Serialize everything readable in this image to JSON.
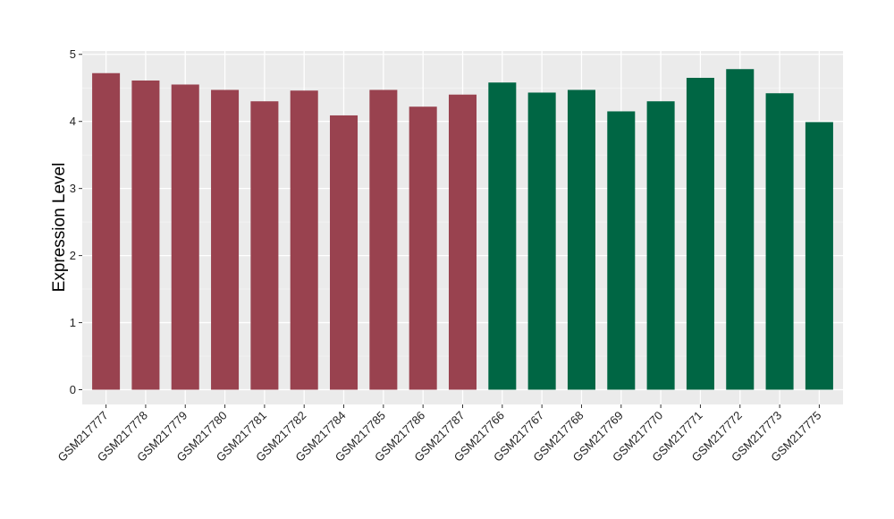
{
  "chart_data": {
    "type": "bar",
    "ylabel": "Expression Level",
    "xlabel": "",
    "ylim": [
      -0.22,
      5.05
    ],
    "yticks": [
      0,
      1,
      2,
      3,
      4,
      5
    ],
    "grid": true,
    "categories": [
      "GSM217777",
      "GSM217778",
      "GSM217779",
      "GSM217780",
      "GSM217781",
      "GSM217782",
      "GSM217784",
      "GSM217785",
      "GSM217786",
      "GSM217787",
      "GSM217766",
      "GSM217767",
      "GSM217768",
      "GSM217769",
      "GSM217770",
      "GSM217771",
      "GSM217772",
      "GSM217773",
      "GSM217775"
    ],
    "values": [
      4.72,
      4.61,
      4.55,
      4.47,
      4.3,
      4.46,
      4.09,
      4.47,
      4.22,
      4.4,
      4.58,
      4.43,
      4.47,
      4.15,
      4.3,
      4.65,
      4.78,
      4.42,
      3.99
    ],
    "groups": [
      0,
      0,
      0,
      0,
      0,
      0,
      0,
      0,
      0,
      0,
      1,
      1,
      1,
      1,
      1,
      1,
      1,
      1,
      1
    ],
    "colors": [
      "#99424f",
      "#006644"
    ]
  }
}
